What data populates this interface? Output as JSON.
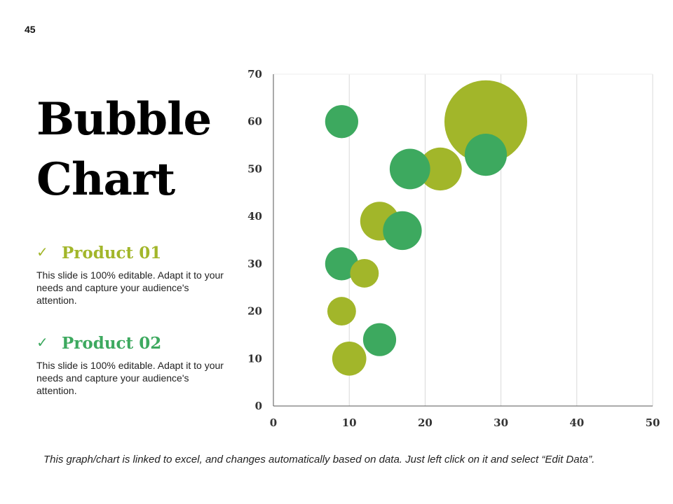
{
  "page": {
    "number": "45"
  },
  "title": {
    "line1": "Bubble",
    "line2": "Chart"
  },
  "products": [
    {
      "name": "Product 01",
      "check_icon": "✓",
      "description": "This slide is 100% editable. Adapt it to your needs and capture your audience's attention.",
      "color": "#A2B62A"
    },
    {
      "name": "Product 02",
      "check_icon": "✓",
      "description": "This slide is 100% editable. Adapt it to your needs and capture your audience's attention.",
      "color": "#3DA95F"
    }
  ],
  "footnote": "This graph/chart is linked to excel, and changes automatically based on data. Just left click on it and select “Edit Data”.",
  "chart_data": {
    "type": "scatter",
    "subtype": "bubble",
    "title": "",
    "xlabel": "",
    "ylabel": "",
    "xlim": [
      0,
      50
    ],
    "ylim": [
      0,
      70
    ],
    "xticks": [
      0,
      10,
      20,
      30,
      40,
      50
    ],
    "yticks": [
      0,
      10,
      20,
      30,
      40,
      50,
      60,
      70
    ],
    "grid": "vertical",
    "series": [
      {
        "name": "Product 01",
        "color": "#A2B62A",
        "points": [
          {
            "x": 28,
            "y": 60,
            "size": 100
          },
          {
            "x": 22,
            "y": 50,
            "size": 27
          },
          {
            "x": 14,
            "y": 39,
            "size": 22
          },
          {
            "x": 12,
            "y": 28,
            "size": 12
          },
          {
            "x": 9,
            "y": 20,
            "size": 12
          },
          {
            "x": 10,
            "y": 10,
            "size": 17
          }
        ]
      },
      {
        "name": "Product 02",
        "color": "#3DA95F",
        "points": [
          {
            "x": 9,
            "y": 60,
            "size": 16
          },
          {
            "x": 18,
            "y": 50,
            "size": 24
          },
          {
            "x": 28,
            "y": 53,
            "size": 26
          },
          {
            "x": 17,
            "y": 37,
            "size": 22
          },
          {
            "x": 9,
            "y": 30,
            "size": 16
          },
          {
            "x": 14,
            "y": 14,
            "size": 16
          }
        ]
      }
    ]
  }
}
